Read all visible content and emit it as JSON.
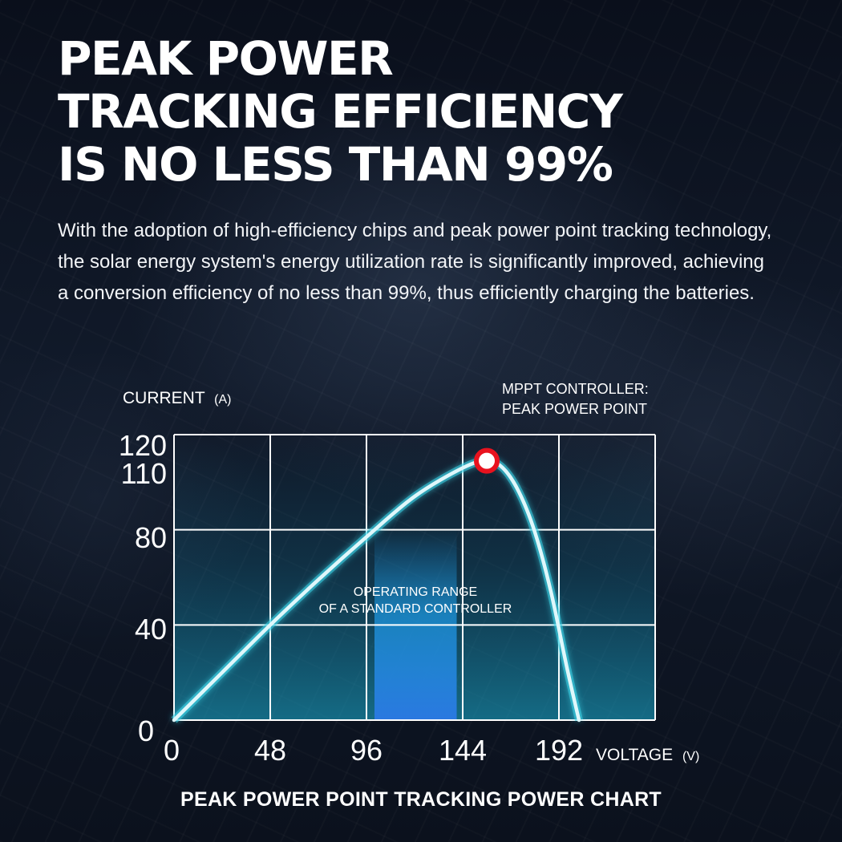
{
  "headline": {
    "line1": "PEAK POWER",
    "line2": "TRACKING EFFICIENCY",
    "line3": "IS NO LESS THAN 99%"
  },
  "description": "With the adoption of high-efficiency chips and peak power point tracking technology, the solar energy system's energy utilization rate is significantly improved, achieving a conversion efficiency of no less than 99%, thus efficiently charging the batteries.",
  "chart_data": {
    "type": "line",
    "title": "PEAK POWER POINT TRACKING POWER CHART",
    "ylabel": "CURRENT",
    "ylabel_unit": "(A)",
    "xlabel": "VOLTAGE",
    "xlabel_unit": "(V)",
    "x_ticks": [
      "0",
      "48",
      "96",
      "144",
      "192"
    ],
    "y_ticks": [
      "0",
      "40",
      "80",
      "110",
      "120"
    ],
    "xlim": [
      0,
      240
    ],
    "ylim": [
      0,
      120
    ],
    "grid": true,
    "series": [
      {
        "x": [
          0,
          24,
          48,
          72,
          96,
          120,
          144,
          156,
          164,
          172,
          180,
          188,
          196,
          202
        ],
        "y": [
          0,
          20,
          40,
          59,
          77,
          94,
          106,
          109,
          106,
          96,
          79,
          54,
          22,
          0
        ]
      }
    ],
    "peak_point": {
      "x": 156,
      "y": 109,
      "color": "#e8121e"
    },
    "highlight_band": {
      "x_start": 100,
      "x_end": 141,
      "color": "#1e9be6"
    },
    "annotations": {
      "peak_label_line1": "MPPT CONTROLLER:",
      "peak_label_line2": "PEAK POWER POINT",
      "band_label_line1": "OPERATING RANGE",
      "band_label_line2": "OF A STANDARD CONTROLLER"
    },
    "colors": {
      "curve": "#dff7fb",
      "glow": "#3cd2e6",
      "grid": "#ffffff",
      "fill": "#148cb4"
    }
  }
}
